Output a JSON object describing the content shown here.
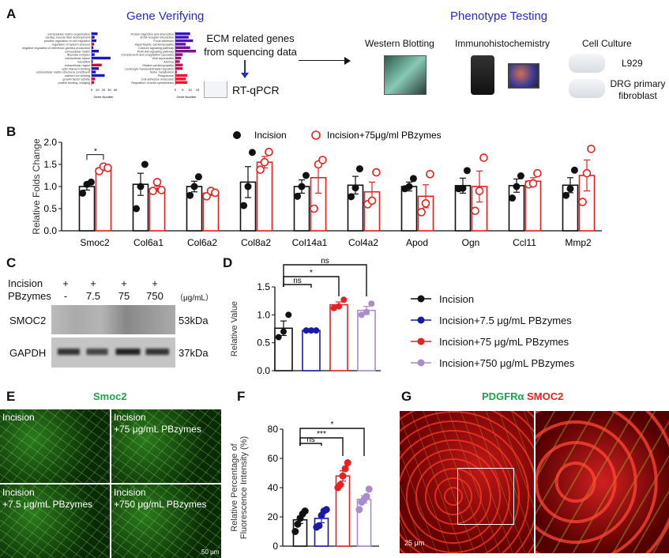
{
  "panels": {
    "a": "A",
    "b": "B",
    "c": "C",
    "d": "D",
    "e": "E",
    "f": "F",
    "g": "G"
  },
  "panel_a": {
    "gene_title": "Gene Verifying",
    "phenotype_title": "Phenotype Testing",
    "ecm_line1": "ECM related genes",
    "ecm_line2": "from squencing data",
    "rtqpcr": "RT-qPCR",
    "go_axis": "Gene Number",
    "kegg_axis": "Gene Number",
    "go_ticks": [
      "0",
      "10",
      "20",
      "30",
      "40"
    ],
    "kegg_ticks": [
      "0",
      "5",
      "10",
      "15"
    ],
    "go_terms": [
      "extracellular matrix organization",
      "cardiac muscle fiber development",
      "positive regulation of cell migration",
      "regulation of system process",
      "negative regulation of interferon-gamma production",
      "extracellular matrix",
      "filopodia complex",
      "extracellular space",
      "microfibril",
      "extracellular region",
      "actin filament binding",
      "extracellular matrix structural constituent",
      "calcium ion binding",
      "growth factor activity",
      "protein binding, bridging"
    ],
    "go_values": [
      10,
      5,
      8,
      4,
      3,
      12,
      5,
      32,
      2,
      17,
      12,
      7,
      22,
      6,
      4
    ],
    "kegg_terms": [
      "Protein digestion and absorption",
      "ECM-receptor interaction",
      "Focal adhesion",
      "Hypertrophic cardiomyopathy",
      "Calcium signaling pathway",
      "PI3K-Akt signaling pathway",
      "Complement and coagulation cascades",
      "Viral myocarditis",
      "Asthma",
      "Dilated cardiomyopathy",
      "Leukocyte transendothelial migration",
      "Sulfur metabolism",
      "Phagosome",
      "Cell adhesion molecules",
      "Regulation of actin cytoskeleton"
    ],
    "kegg_values": [
      10,
      9,
      12,
      7,
      10,
      14,
      5,
      4,
      3,
      5,
      5,
      1,
      8,
      7,
      8
    ],
    "methods": [
      "Western Blotting",
      "Immunohistochemistry",
      "Cell Culture"
    ],
    "cells": [
      "L929",
      "DRG primary fibroblast"
    ]
  },
  "panel_c": {
    "row1_label": "Incision",
    "row2_label": "PBzymes",
    "row1": [
      "+",
      "+",
      "+",
      "+"
    ],
    "row2": [
      "-",
      "7.5",
      "75",
      "750"
    ],
    "unit": "（μg/mL）",
    "bands": [
      {
        "name": "SMOC2",
        "kda": "53kDa"
      },
      {
        "name": "GAPDH",
        "kda": "37kDa"
      }
    ]
  },
  "panel_d_legend": [
    "Incision",
    "Incision+7.5 μg/mL PBzymes",
    "Incision+75 μg/mL PBzymes",
    "Incision+750 μg/mL PBzymes"
  ],
  "panel_e": {
    "title": "Smoc2",
    "tiles": [
      "Incision",
      "Incision\n+75 μg/mL PBzymes",
      "Incision\n+7.5 μg/mL PBzymes",
      "Incision\n+750 μg/mL PBzymes"
    ],
    "scale": "50 μm"
  },
  "panel_g": {
    "title_a": "PDGFRα",
    "title_b": "SMOC2",
    "scale": "25 μm"
  },
  "colors": {
    "black": "#111111",
    "blue": "#1a1aa8",
    "red": "#e52222",
    "purple": "#a98ccc",
    "green": "#1fa34a"
  },
  "chart_data": [
    {
      "id": "B",
      "type": "bar",
      "ylabel": "Relative Folds Change",
      "ylim": [
        0,
        2.0
      ],
      "yticks": [
        "0.0",
        "0.5",
        "1.0",
        "1.5",
        "2.0"
      ],
      "legend": [
        "Incision",
        "Incision+75μg/ml PBzymes"
      ],
      "legend_position": "top",
      "categories": [
        "Smoc2",
        "Col6a1",
        "Col6a2",
        "Col8a2",
        "Col14a1",
        "Col4a2",
        "Apod",
        "Ogn",
        "Ccl11",
        "Mmp2"
      ],
      "series": [
        {
          "name": "Incision",
          "values": [
            1.0,
            1.05,
            1.0,
            1.1,
            1.0,
            1.03,
            1.0,
            1.02,
            1.02,
            1.03
          ],
          "err": [
            0.08,
            0.25,
            0.12,
            0.35,
            0.15,
            0.2,
            0.1,
            0.17,
            0.15,
            0.17
          ],
          "points": [
            [
              0.85,
              1.05,
              1.1
            ],
            [
              0.5,
              1.0,
              1.5
            ],
            [
              0.8,
              1.0,
              1.22
            ],
            [
              0.57,
              1.0,
              1.77
            ],
            [
              0.78,
              1.0,
              1.25
            ],
            [
              0.77,
              0.97,
              1.4
            ],
            [
              0.95,
              1.0,
              1.18
            ],
            [
              0.95,
              0.96,
              1.36
            ],
            [
              0.74,
              1.0,
              1.24
            ],
            [
              0.8,
              0.95,
              1.37
            ]
          ]
        },
        {
          "name": "Incision+75μg/ml PBzymes",
          "values": [
            1.4,
            0.95,
            0.85,
            1.55,
            1.2,
            0.88,
            0.78,
            1.0,
            1.12,
            1.25
          ],
          "err": [
            0.04,
            0.06,
            0.05,
            0.13,
            0.35,
            0.22,
            0.26,
            0.35,
            0.08,
            0.35
          ],
          "points": [
            [
              1.35,
              1.45,
              1.42
            ],
            [
              0.9,
              1.1,
              0.92
            ],
            [
              0.78,
              0.9,
              0.86
            ],
            [
              1.38,
              1.55,
              1.78
            ],
            [
              0.5,
              1.5,
              1.6
            ],
            [
              0.6,
              0.68,
              1.32
            ],
            [
              0.42,
              0.62,
              1.28
            ],
            [
              0.45,
              0.9,
              1.65
            ],
            [
              1.05,
              1.07,
              1.3
            ],
            [
              0.65,
              1.3,
              1.85
            ]
          ]
        }
      ],
      "annotations": [
        {
          "text": "*",
          "between": [
            "Smoc2 Incision",
            "Smoc2 Incision+75μg/ml PBzymes"
          ]
        }
      ]
    },
    {
      "id": "D",
      "type": "bar",
      "ylabel": "Relative Value",
      "ylim": [
        0,
        1.5
      ],
      "yticks": [
        "0.0",
        "0.5",
        "1.0",
        "1.5"
      ],
      "categories": [
        "Incision",
        "Incision+7.5 μg/mL PBzymes",
        "Incision+75 μg/mL PBzymes",
        "Incision+750 μg/mL PBzymes"
      ],
      "values": [
        0.76,
        0.72,
        1.18,
        1.08
      ],
      "err": [
        0.13,
        0.01,
        0.05,
        0.07
      ],
      "points": [
        [
          0.6,
          0.7,
          1.0
        ],
        [
          0.72,
          0.72,
          0.72
        ],
        [
          1.12,
          1.15,
          1.27
        ],
        [
          1.0,
          1.05,
          1.2
        ]
      ],
      "annotations": [
        {
          "text": "ns",
          "compare": [
            0,
            1
          ]
        },
        {
          "text": "*",
          "compare": [
            0,
            2
          ]
        },
        {
          "text": "ns",
          "compare": [
            0,
            3
          ]
        }
      ]
    },
    {
      "id": "F",
      "type": "bar",
      "ylabel": "Relative Percentage of Fluorescence Intensity (%)",
      "ylabel_lines": [
        "Relative Percentage of",
        "Fluorescence Intensity (%)"
      ],
      "ylim": [
        0,
        80
      ],
      "yticks": [
        "0",
        "20",
        "40",
        "60",
        "80"
      ],
      "categories": [
        "Incision",
        "Incision+7.5 μg/mL PBzymes",
        "Incision+75 μg/mL PBzymes",
        "Incision+750 μg/mL PBzymes"
      ],
      "values": [
        18,
        19,
        48,
        32
      ],
      "err": [
        2.5,
        3,
        3.5,
        2.5
      ],
      "points": [
        [
          10,
          15,
          19,
          22,
          24
        ],
        [
          13,
          14,
          21,
          24,
          25
        ],
        [
          40,
          42,
          48,
          53,
          57
        ],
        [
          25,
          30,
          32,
          34,
          39
        ]
      ],
      "annotations": [
        {
          "text": "ns",
          "compare": [
            0,
            1
          ]
        },
        {
          "text": "***",
          "compare": [
            0,
            2
          ]
        },
        {
          "text": "*",
          "compare": [
            0,
            3
          ]
        }
      ]
    }
  ]
}
